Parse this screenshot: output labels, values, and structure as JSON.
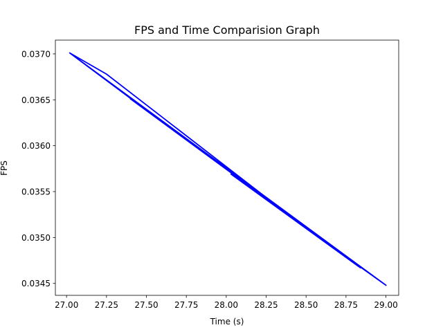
{
  "chart_data": {
    "type": "line",
    "title": "FPS and Time Comparision Graph",
    "xlabel": "Time (s)",
    "ylabel": "FPS",
    "xlim": [
      26.93,
      29.08
    ],
    "ylim": [
      0.03437,
      0.03715
    ],
    "xticks": [
      "27.00",
      "27.25",
      "27.50",
      "27.75",
      "28.00",
      "28.25",
      "28.50",
      "28.75",
      "29.00"
    ],
    "yticks": [
      "0.0345",
      "0.0350",
      "0.0355",
      "0.0360",
      "0.0365",
      "0.0370"
    ],
    "grid": false,
    "series": [
      {
        "name": "",
        "color": "#0000ff",
        "x": [
          27.02,
          27.42,
          27.4,
          28.84,
          28.03,
          29.0,
          27.02,
          27.25,
          28.5,
          29.0
        ],
        "y": [
          0.03701,
          0.03649,
          0.03651,
          0.03467,
          0.03569,
          0.03448,
          0.03701,
          0.03678,
          0.0351,
          0.03448
        ]
      }
    ]
  }
}
